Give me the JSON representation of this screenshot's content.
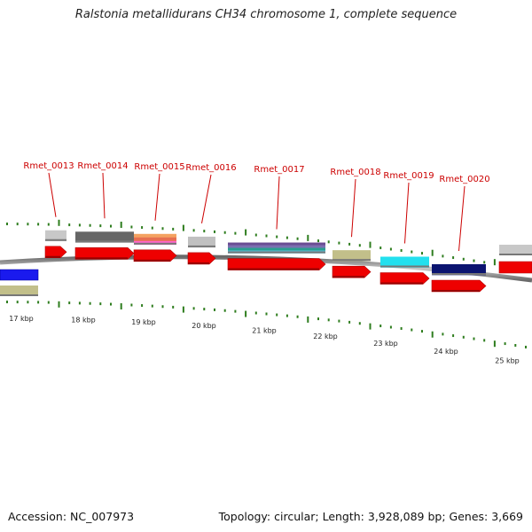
{
  "title": "Ralstonia metallidurans CH34 chromosome 1, complete sequence",
  "footer": {
    "accession": "Accession: NC_007973",
    "stats": "Topology: circular; Length: 3,928,089 bp; Genes: 3,669"
  },
  "colors": {
    "gene_arrow": "#ee0000",
    "label": "#cc0000",
    "tick": "#2e7d1e",
    "backbone": "#8c8c8c"
  },
  "kbp_labels": [
    "17 kbp",
    "18 kbp",
    "19 kbp",
    "20 kbp",
    "21 kbp",
    "22 kbp",
    "23 kbp",
    "24 kbp",
    "25 kbp"
  ],
  "genes": [
    {
      "label": "Rmet_0013",
      "cog_colors": [
        "#c8c8c8"
      ]
    },
    {
      "label": "Rmet_0014",
      "cog_colors": [
        "#666666"
      ]
    },
    {
      "label": "Rmet_0015",
      "cog_colors": [
        "#f4a261",
        "#e76f51",
        "#ff66cc"
      ]
    },
    {
      "label": "Rmet_0016",
      "cog_colors": [
        "#c0c0c0"
      ]
    },
    {
      "label": "Rmet_0017",
      "cog_colors": [
        "#6a4c93",
        "#7b6fb0",
        "#2a9d8f",
        "#5bc0de"
      ]
    },
    {
      "label": "Rmet_0018",
      "cog_colors": [
        "#c2bf8a"
      ]
    },
    {
      "label": "Rmet_0019",
      "cog_colors": [
        "#22e0ee"
      ]
    },
    {
      "label": "Rmet_0020",
      "cog_colors": [
        "#0b1470"
      ]
    }
  ]
}
